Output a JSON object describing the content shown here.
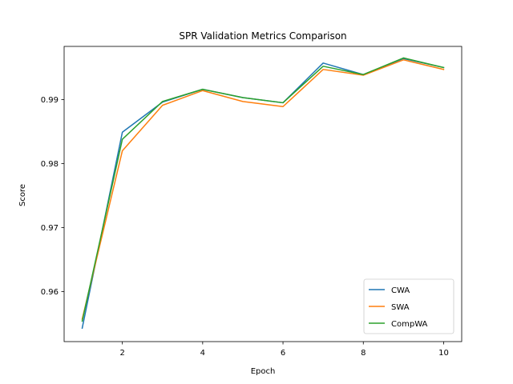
{
  "chart_data": {
    "type": "line",
    "title": "SPR Validation Metrics Comparison",
    "xlabel": "Epoch",
    "ylabel": "Score",
    "x": [
      1,
      2,
      3,
      4,
      5,
      6,
      7,
      8,
      9,
      10
    ],
    "xlim": [
      0.55,
      10.45
    ],
    "ylim": [
      0.9522,
      0.9983
    ],
    "xticks": [
      2,
      4,
      6,
      8,
      10
    ],
    "xtick_labels": [
      "2",
      "4",
      "6",
      "8",
      "10"
    ],
    "yticks": [
      0.96,
      0.97,
      0.98,
      0.99
    ],
    "ytick_labels": [
      "0.96",
      "0.97",
      "0.98",
      "0.99"
    ],
    "grid": false,
    "legend_position": "lower right",
    "series": [
      {
        "name": "CWA",
        "color": "#1f77b4",
        "values": [
          0.9543,
          0.9849,
          0.9896,
          0.9916,
          0.9903,
          0.9895,
          0.9957,
          0.9939,
          0.9964,
          0.995
        ]
      },
      {
        "name": "SWA",
        "color": "#ff7f0e",
        "values": [
          0.9557,
          0.982,
          0.9891,
          0.9914,
          0.9897,
          0.9889,
          0.9947,
          0.9938,
          0.9962,
          0.9947
        ]
      },
      {
        "name": "CompWA",
        "color": "#2ca02c",
        "values": [
          0.9554,
          0.9838,
          0.9897,
          0.9916,
          0.9903,
          0.9895,
          0.9952,
          0.9939,
          0.9965,
          0.995
        ]
      }
    ]
  }
}
